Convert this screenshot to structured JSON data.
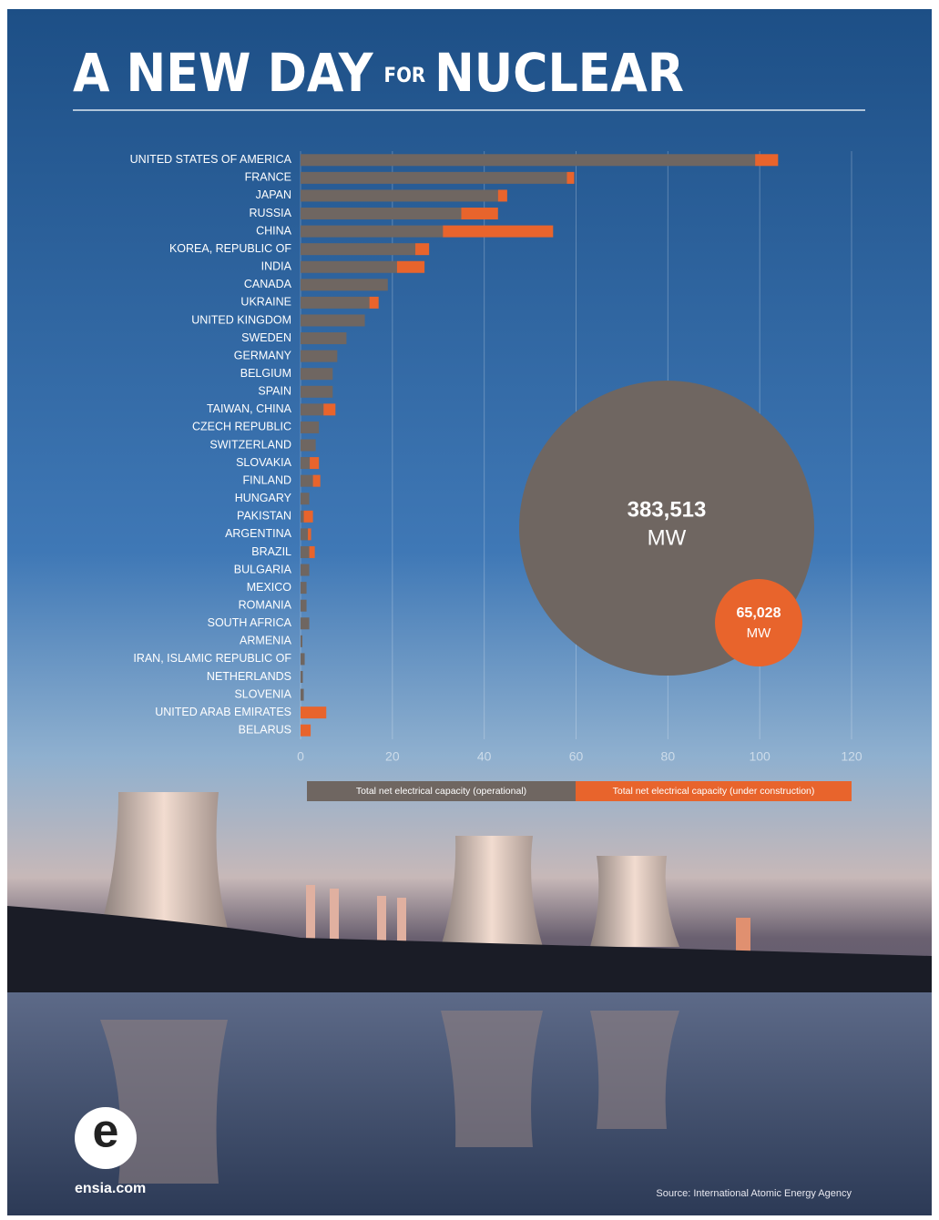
{
  "chart_data": {
    "type": "bar",
    "orientation": "horizontal",
    "stacked": true,
    "title": [
      "A NEW DAY",
      "FOR",
      "NUCLEAR"
    ],
    "categories": [
      "UNITED STATES OF AMERICA",
      "FRANCE",
      "JAPAN",
      "RUSSIA",
      "CHINA",
      "KOREA, REPUBLIC OF",
      "INDIA",
      "CANADA",
      "UKRAINE",
      "UNITED KINGDOM",
      "SWEDEN",
      "GERMANY",
      "BELGIUM",
      "SPAIN",
      "TAIWAN, CHINA",
      "CZECH REPUBLIC",
      "SWITZERLAND",
      "SLOVAKIA",
      "FINLAND",
      "HUNGARY",
      "PAKISTAN",
      "ARGENTINA",
      "BRAZIL",
      "BULGARIA",
      "MEXICO",
      "ROMANIA",
      "SOUTH AFRICA",
      "ARMENIA",
      "IRAN, ISLAMIC REPUBLIC OF",
      "NETHERLANDS",
      "SLOVENIA",
      "UNITED ARAB EMIRATES",
      "BELARUS"
    ],
    "series": [
      {
        "name": "Total net electrical capacity (operational)",
        "color": "#6f6661",
        "values": [
          99,
          58,
          43,
          35,
          31,
          25,
          21,
          19,
          15,
          14,
          10,
          8,
          7,
          7,
          5,
          4,
          3.3,
          2,
          2.7,
          1.9,
          0.7,
          1.6,
          1.9,
          1.9,
          1.3,
          1.3,
          1.9,
          0.4,
          0.9,
          0.5,
          0.7,
          0,
          0
        ]
      },
      {
        "name": "Total net electrical capacity (under construction)",
        "color": "#e8642c",
        "values": [
          5,
          1.6,
          2,
          8,
          24,
          3,
          6,
          0,
          2,
          0,
          0,
          0,
          0,
          0,
          2.6,
          0,
          0,
          2,
          1.6,
          0,
          2,
          0.7,
          1.2,
          0,
          0,
          0,
          0,
          0,
          0,
          0,
          0,
          5.6,
          2.2
        ]
      }
    ],
    "xlim": [
      0,
      120
    ],
    "xticks": [
      0,
      20,
      40,
      60,
      80,
      100,
      120
    ],
    "grid": true,
    "annotations": [
      "383,513",
      "MW",
      "65,028",
      "MW"
    ],
    "logo": [
      "e",
      "ensia.com"
    ],
    "source": "Source: International Atomic Energy Agency"
  }
}
